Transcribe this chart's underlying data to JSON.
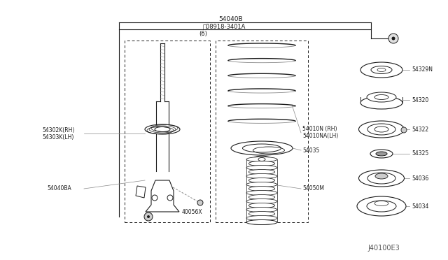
{
  "bg_color": "#ffffff",
  "line_color": "#1a1a1a",
  "gray_color": "#888888",
  "light_gray": "#bbbbbb",
  "fig_width": 6.4,
  "fig_height": 3.72,
  "dpi": 100,
  "title_code": "J40100E3",
  "label_54040B": "54040B",
  "label_N": "ⓝ08918-3401A",
  "label_6": "(6)",
  "label_54302K": "54302K(RH)",
  "label_54303K": "54303K(LH)",
  "label_54040BA": "54040BA",
  "label_40056X": "40056X",
  "label_54010N": "54010N (RH)",
  "label_54010NA": "54010NA(LH)",
  "label_54035": "54035",
  "label_54050M": "54050M",
  "label_54329N": "54329N",
  "label_54320": "54320",
  "label_54322": "54322",
  "label_54325": "54325",
  "label_54036": "54036",
  "label_54034": "54034"
}
